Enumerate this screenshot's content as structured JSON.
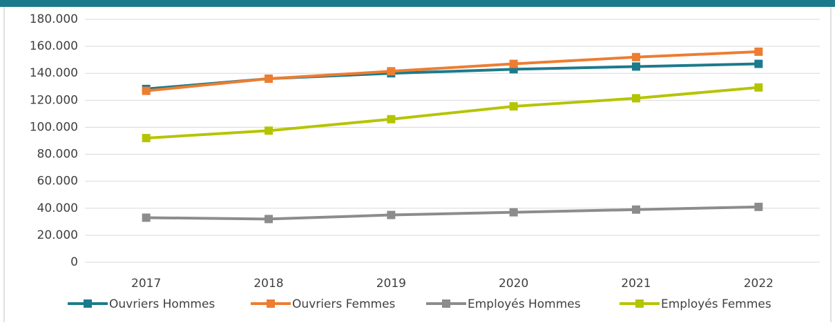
{
  "chart_data": {
    "type": "line",
    "categories": [
      "2017",
      "2018",
      "2019",
      "2020",
      "2021",
      "2022"
    ],
    "series": [
      {
        "name": "Ouvriers Hommes",
        "color": "#1b7b8c",
        "values": [
          128400,
          136000,
          140000,
          143000,
          145000,
          147000
        ]
      },
      {
        "name": "Ouvriers Femmes",
        "color": "#ed7d31",
        "values": [
          127000,
          136000,
          141500,
          147000,
          152000,
          156000
        ]
      },
      {
        "name": "Employés Hommes",
        "color": "#8c8c8c",
        "values": [
          33000,
          32000,
          35000,
          37000,
          39000,
          41000
        ]
      },
      {
        "name": "Employés Femmes",
        "color": "#b5c400",
        "values": [
          92000,
          97500,
          106000,
          115500,
          121500,
          129500
        ]
      }
    ],
    "ylim": [
      0,
      180000
    ],
    "yticks": [
      0,
      {
        "value": 20000,
        "label": "20.000"
      },
      {
        "value": 40000,
        "label": "40.000"
      },
      {
        "value": 60000,
        "label": "60.000"
      },
      {
        "value": 80000,
        "label": "80.000"
      },
      {
        "value": 100000,
        "label": "100.000"
      },
      {
        "value": 120000,
        "label": "120.000"
      },
      {
        "value": 140000,
        "label": "140.000"
      },
      {
        "value": 160000,
        "label": "160.000"
      },
      {
        "value": 180000,
        "label": "180.000"
      }
    ],
    "grid": true,
    "legend": "bottom"
  }
}
